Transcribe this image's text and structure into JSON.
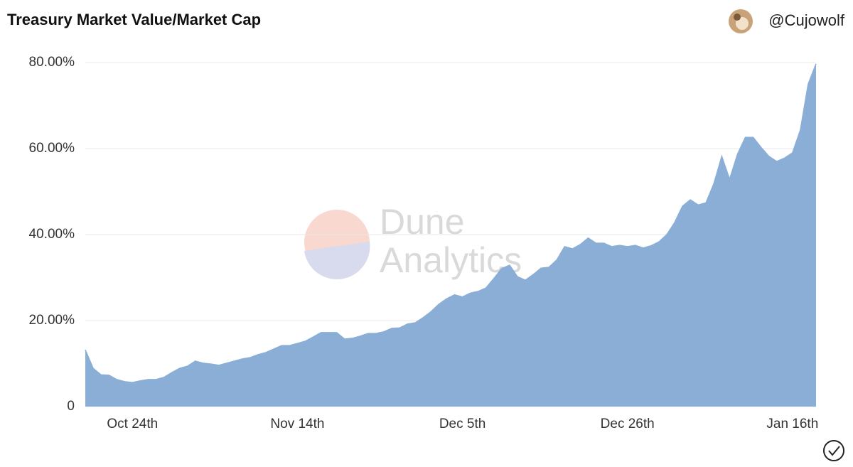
{
  "header": {
    "title": "Treasury Market Value/Market Cap",
    "author": "@Cujowolf"
  },
  "watermark": [
    "Dune",
    "Analytics"
  ],
  "chart_data": {
    "type": "area",
    "categories": [
      null,
      null,
      null,
      null,
      null,
      null,
      "Oct 24th",
      null,
      null,
      null,
      null,
      null,
      null,
      null,
      null,
      null,
      null,
      null,
      null,
      null,
      null,
      null,
      null,
      null,
      null,
      null,
      null,
      "Nov 14th",
      null,
      null,
      null,
      null,
      null,
      null,
      null,
      null,
      null,
      null,
      null,
      null,
      null,
      null,
      null,
      null,
      null,
      null,
      null,
      null,
      "Dec 5th",
      null,
      null,
      null,
      null,
      null,
      null,
      null,
      null,
      null,
      null,
      null,
      null,
      null,
      null,
      null,
      null,
      null,
      null,
      null,
      null,
      "Dec 26th",
      null,
      null,
      null,
      null,
      null,
      null,
      null,
      null,
      null,
      null,
      null,
      null,
      null,
      null,
      null,
      null,
      null,
      null,
      null,
      null,
      "Jan 16th",
      null,
      null,
      null
    ],
    "values": [
      13.2,
      8.9,
      7.4,
      7.3,
      6.3,
      5.8,
      5.6,
      6.0,
      6.3,
      6.3,
      6.8,
      7.9,
      8.9,
      9.4,
      10.6,
      10.1,
      9.9,
      9.6,
      10.1,
      10.6,
      11.1,
      11.4,
      12.1,
      12.6,
      13.4,
      14.2,
      14.2,
      14.7,
      15.2,
      16.2,
      17.2,
      17.2,
      17.2,
      15.7,
      15.9,
      16.4,
      17.0,
      17.0,
      17.4,
      18.2,
      18.3,
      19.2,
      19.5,
      20.7,
      22.1,
      23.8,
      25.1,
      26.0,
      25.5,
      26.4,
      26.8,
      27.6,
      29.8,
      32.1,
      32.9,
      30.2,
      29.4,
      30.7,
      32.2,
      32.4,
      34.1,
      37.2,
      36.7,
      37.7,
      39.2,
      38.0,
      38.0,
      37.2,
      37.5,
      37.2,
      37.5,
      36.9,
      37.4,
      38.3,
      40.0,
      42.8,
      46.6,
      48.1,
      46.9,
      47.4,
      51.9,
      58.2,
      52.9,
      58.7,
      62.6,
      62.6,
      60.3,
      58.2,
      57.0,
      57.8,
      59.0,
      64.3,
      75.0,
      79.7
    ],
    "color": "#8aaed6",
    "ylim": [
      0,
      80
    ],
    "yticks": [
      0,
      {
        "value": 20,
        "label": "20.00%"
      },
      {
        "value": 40,
        "label": "40.00%"
      },
      {
        "value": 60,
        "label": "60.00%"
      },
      {
        "value": 80,
        "label": "80.00%"
      }
    ],
    "grid": true
  }
}
